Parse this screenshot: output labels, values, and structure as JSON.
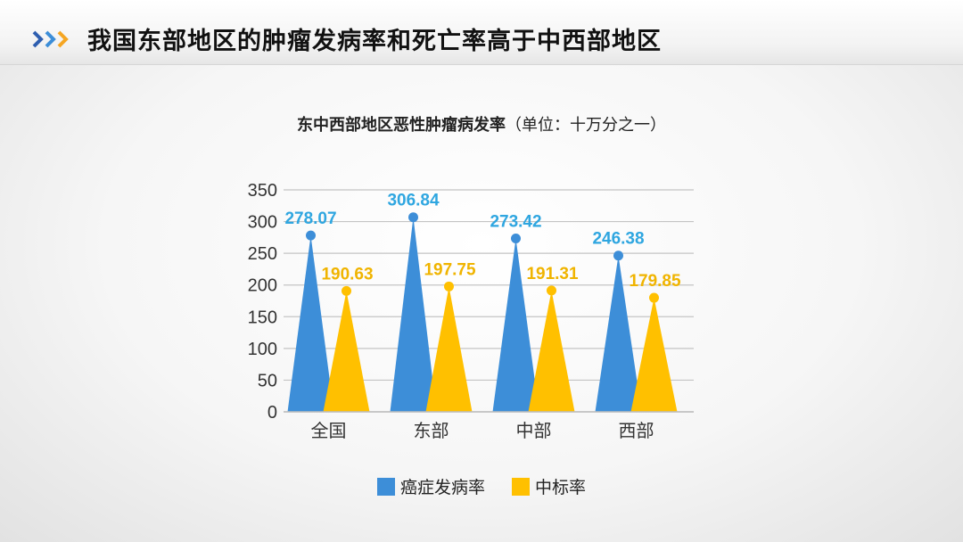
{
  "slide_title": "我国东部地区的肿瘤发病率和死亡率高于中西部地区",
  "chart_data": {
    "type": "bar",
    "title": "东中西部地区恶性肿瘤病发率",
    "subtitle": "（单位：十万分之一）",
    "categories": [
      "全国",
      "东部",
      "中部",
      "西部"
    ],
    "series": [
      {
        "name": "癌症发病率",
        "values": [
          278.07,
          306.84,
          273.42,
          246.38
        ],
        "color": "#3d8ed8",
        "label_color": "#2fa6e0"
      },
      {
        "name": "中标率",
        "values": [
          190.63,
          197.75,
          191.31,
          179.85
        ],
        "color": "#ffc000",
        "label_color": "#f0b400"
      }
    ],
    "ylim": [
      0,
      350
    ],
    "yticks": [
      0,
      50,
      100,
      150,
      200,
      250,
      300,
      350
    ],
    "xlabel": "",
    "ylabel": "",
    "grid": true,
    "legend_position": "bottom",
    "mark_style": "triangle-with-dot"
  }
}
